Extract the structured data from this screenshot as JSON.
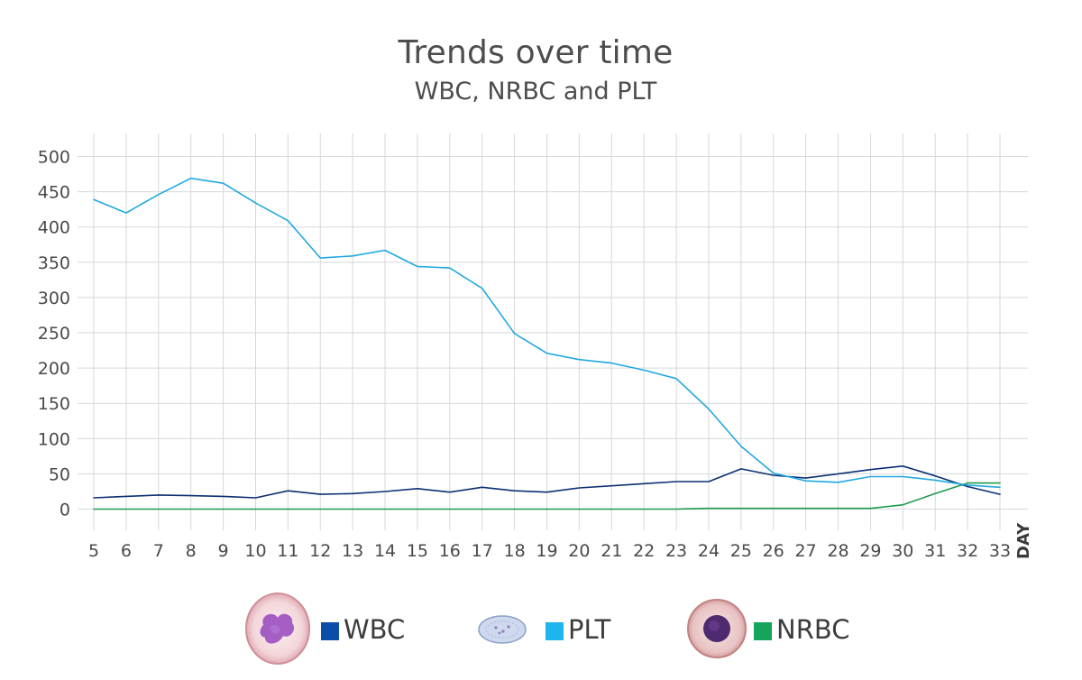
{
  "colors": {
    "wbc": "#0b2f73",
    "plt": "#21a8e1",
    "nrbc": "#1e9b4b",
    "grid": "#d6d7d9",
    "text": "#4a4a4a"
  },
  "chart_data": {
    "type": "line",
    "title": "Trends over time",
    "subtitle": "WBC, NRBC and PLT",
    "xlabel": "DAY",
    "ylabel": "",
    "x": [
      5,
      6,
      7,
      8,
      9,
      10,
      11,
      12,
      13,
      14,
      15,
      16,
      17,
      18,
      19,
      20,
      21,
      22,
      23,
      24,
      25,
      26,
      27,
      28,
      29,
      30,
      31,
      32,
      33
    ],
    "ylim": [
      0,
      500
    ],
    "yticks": [
      0,
      50,
      100,
      150,
      200,
      250,
      300,
      350,
      400,
      450,
      500
    ],
    "grid": true,
    "legend_position": "bottom",
    "series": [
      {
        "name": "WBC",
        "key": "wbc",
        "values": [
          16,
          18,
          20,
          19,
          18,
          16,
          26,
          21,
          22,
          25,
          29,
          24,
          31,
          26,
          24,
          30,
          33,
          36,
          39,
          39,
          57,
          48,
          44,
          50,
          56,
          61,
          47,
          32,
          21
        ]
      },
      {
        "name": "PLT",
        "key": "plt",
        "values": [
          439,
          420,
          446,
          469,
          462,
          434,
          409,
          356,
          359,
          367,
          344,
          342,
          313,
          249,
          221,
          212,
          207,
          197,
          185,
          142,
          89,
          51,
          40,
          38,
          46,
          46,
          41,
          34,
          31
        ]
      },
      {
        "name": "NRBC",
        "key": "nrbc",
        "values": [
          0,
          0,
          0,
          0,
          0,
          0,
          0,
          0,
          0,
          0,
          0,
          0,
          0,
          0,
          0,
          0,
          0,
          0,
          0,
          1,
          1,
          1,
          1,
          1,
          1,
          6,
          22,
          37,
          37
        ]
      }
    ]
  },
  "legend": [
    {
      "label": "WBC",
      "icon": "neutrophil-cell-icon"
    },
    {
      "label": "PLT",
      "icon": "platelet-cell-icon"
    },
    {
      "label": "NRBC",
      "icon": "nucleated-red-blood-cell-icon"
    }
  ]
}
